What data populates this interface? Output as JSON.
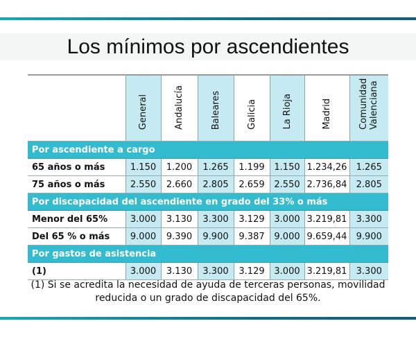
{
  "title": "Los mínimos por ascendientes",
  "columns": [
    "General",
    "Andalucía",
    "Baleares",
    "Galicia",
    "La Rioja",
    "Madrid",
    "Comunidad Valenciana"
  ],
  "sections": [
    {
      "label": "Por ascendiente a cargo",
      "rows": [
        {
          "label": "65 años o más",
          "values": [
            "1.150",
            "1.200",
            "1.265",
            "1.199",
            "1.150",
            "1.234,26",
            "1.265"
          ]
        },
        {
          "label": "75 años o más",
          "values": [
            "2.550",
            "2.660",
            "2.805",
            "2.659",
            "2.550",
            "2.736,84",
            "2.805"
          ]
        }
      ]
    },
    {
      "label": "Por discapacidad del ascendiente en grado del 33% o más",
      "rows": [
        {
          "label": "Menor del 65%",
          "values": [
            "3.000",
            "3.130",
            "3.300",
            "3.129",
            "3.000",
            "3.219,81",
            "3.300"
          ]
        },
        {
          "label": "Del 65 % o más",
          "values": [
            "9.000",
            "9.390",
            "9.900",
            "9.387",
            "9.000",
            "9.659,44",
            "9.900"
          ]
        }
      ]
    },
    {
      "label": "Por gastos de asistencia",
      "rows": [
        {
          "label": "(1)",
          "values": [
            "3.000",
            "3.130",
            "3.300",
            "3.129",
            "3.000",
            "3.219,81",
            "3.300"
          ]
        }
      ]
    }
  ],
  "footnote": "(1) Si se acredita la necesidad de ayuda de terceras personas, movilidad reducida o un grado de discapacidad del 65%.",
  "colors": {
    "section": "#33bbd0",
    "highlight": "#c6eaf1",
    "bar": "#0a6f8e"
  }
}
